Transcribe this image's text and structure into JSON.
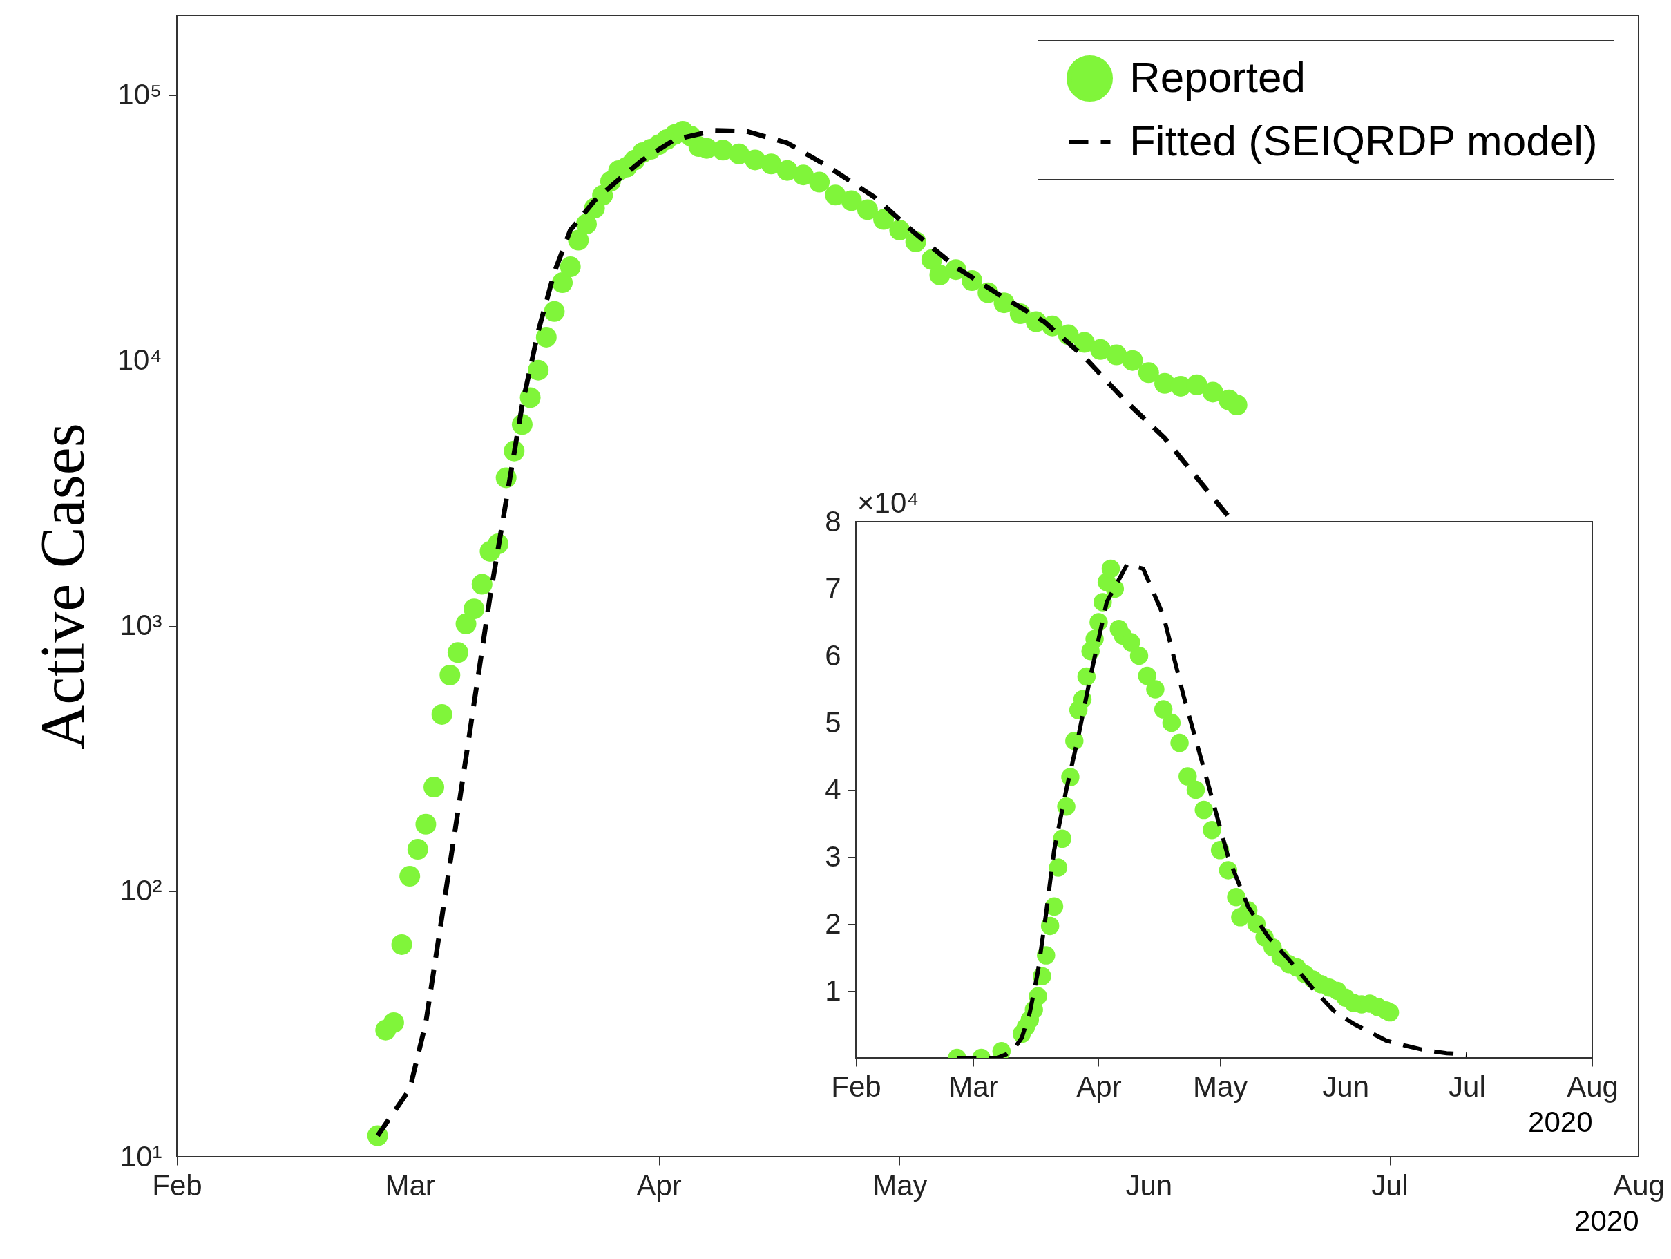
{
  "chart_data": [
    {
      "type": "scatter",
      "ylabel": "Active Cases",
      "xlabel": "2020",
      "log": true,
      "legend": "top right",
      "xlim": [
        "2020-02-01",
        "2020-08-01"
      ],
      "xticks": [
        {
          "value": "2020-02-01",
          "label": "Feb"
        },
        {
          "value": "2020-03-01",
          "label": "Mar"
        },
        {
          "value": "2020-04-01",
          "label": "Apr"
        },
        {
          "value": "2020-05-01",
          "label": "May"
        },
        {
          "value": "2020-06-01",
          "label": "Jun"
        },
        {
          "value": "2020-07-01",
          "label": "Jul"
        },
        {
          "value": "2020-08-01",
          "label": "Aug"
        }
      ],
      "ylim": [
        10,
        200000
      ],
      "yticks": [
        {
          "value": 10,
          "label": "10¹"
        },
        {
          "value": 100,
          "label": "10²"
        },
        {
          "value": 1000,
          "label": "10³"
        },
        {
          "value": 10000,
          "label": "10⁴"
        },
        {
          "value": 100000,
          "label": "10⁵"
        }
      ],
      "series": [
        {
          "name": "Reported",
          "type": "scatter",
          "marker": "circle",
          "color": "#80f53a",
          "x": [
            "2020-02-26",
            "2020-02-27",
            "2020-02-28",
            "2020-02-29",
            "2020-03-01",
            "2020-03-02",
            "2020-03-03",
            "2020-03-04",
            "2020-03-05",
            "2020-03-06",
            "2020-03-07",
            "2020-03-08",
            "2020-03-09",
            "2020-03-10",
            "2020-03-11",
            "2020-03-12",
            "2020-03-13",
            "2020-03-14",
            "2020-03-15",
            "2020-03-16",
            "2020-03-17",
            "2020-03-18",
            "2020-03-19",
            "2020-03-20",
            "2020-03-21",
            "2020-03-22",
            "2020-03-23",
            "2020-03-24",
            "2020-03-25",
            "2020-03-26",
            "2020-03-27",
            "2020-03-28",
            "2020-03-29",
            "2020-03-30",
            "2020-03-31",
            "2020-04-01",
            "2020-04-02",
            "2020-04-03",
            "2020-04-04",
            "2020-04-05",
            "2020-04-06",
            "2020-04-07",
            "2020-04-09",
            "2020-04-11",
            "2020-04-13",
            "2020-04-15",
            "2020-04-17",
            "2020-04-19",
            "2020-04-21",
            "2020-04-23",
            "2020-04-25",
            "2020-04-27",
            "2020-04-29",
            "2020-05-01",
            "2020-05-03",
            "2020-05-05",
            "2020-05-06",
            "2020-05-08",
            "2020-05-10",
            "2020-05-12",
            "2020-05-14",
            "2020-05-16",
            "2020-05-18",
            "2020-05-20",
            "2020-05-22",
            "2020-05-24",
            "2020-05-26",
            "2020-05-28",
            "2020-05-30",
            "2020-06-01",
            "2020-06-03",
            "2020-06-05",
            "2020-06-07",
            "2020-06-09",
            "2020-06-11",
            "2020-06-12"
          ],
          "values": [
            12,
            30,
            32,
            63,
            114,
            144,
            179,
            247,
            464,
            653,
            794,
            1018,
            1159,
            1435,
            1909,
            2038,
            3614,
            4560,
            5740,
            7245,
            9200,
            12240,
            15300,
            19650,
            22550,
            28400,
            32670,
            37500,
            41900,
            47300,
            51900,
            53500,
            56900,
            60700,
            62500,
            65000,
            68000,
            71000,
            73000,
            70000,
            64000,
            63000,
            62000,
            60000,
            57000,
            55000,
            52000,
            50000,
            47000,
            42000,
            40000,
            37000,
            34000,
            31000,
            28000,
            24000,
            21000,
            22000,
            20000,
            18000,
            16500,
            15000,
            14000,
            13500,
            12500,
            11700,
            11000,
            10500,
            10000,
            9000,
            8200,
            8000,
            8100,
            7600,
            7100,
            6800
          ]
        },
        {
          "name": "Fitted (SEIQRDP model)",
          "type": "line",
          "line_style": "dashed",
          "color": "#000000",
          "x": [
            "2020-02-26",
            "2020-03-01",
            "2020-03-03",
            "2020-03-05",
            "2020-03-07",
            "2020-03-09",
            "2020-03-11",
            "2020-03-13",
            "2020-03-15",
            "2020-03-17",
            "2020-03-19",
            "2020-03-21",
            "2020-03-24",
            "2020-03-27",
            "2020-03-30",
            "2020-04-03",
            "2020-04-08",
            "2020-04-12",
            "2020-04-17",
            "2020-04-22",
            "2020-04-28",
            "2020-05-03",
            "2020-05-08",
            "2020-05-13",
            "2020-05-19",
            "2020-05-24",
            "2020-05-29",
            "2020-06-03",
            "2020-06-11"
          ],
          "values": [
            12,
            18,
            32,
            80,
            200,
            510,
            1290,
            2960,
            6800,
            12900,
            21500,
            31000,
            40000,
            48000,
            57000,
            68000,
            73600,
            73000,
            66000,
            54000,
            41000,
            30000,
            22500,
            18000,
            14000,
            10300,
            7100,
            5100,
            2570
          ]
        }
      ]
    },
    {
      "type": "scatter",
      "xlabel": "2020",
      "annotations": [
        "×10⁴"
      ],
      "xlim": [
        "2020-02-01",
        "2020-08-01"
      ],
      "xticks": [
        {
          "value": "2020-02-01",
          "label": "Feb"
        },
        {
          "value": "2020-03-01",
          "label": "Mar"
        },
        {
          "value": "2020-04-01",
          "label": "Apr"
        },
        {
          "value": "2020-05-01",
          "label": "May"
        },
        {
          "value": "2020-06-01",
          "label": "Jun"
        },
        {
          "value": "2020-07-01",
          "label": "Jul"
        },
        {
          "value": "2020-08-01",
          "label": "Aug"
        }
      ],
      "ylim": [
        0,
        8
      ],
      "yticks": [
        1,
        2,
        3,
        4,
        5,
        6,
        7,
        8
      ],
      "series": [
        {
          "type": "scatter",
          "marker": "circle",
          "color": "#80f53a",
          "x": [
            "2020-02-26",
            "2020-03-03",
            "2020-03-08",
            "2020-03-13",
            "2020-03-14",
            "2020-03-15",
            "2020-03-16",
            "2020-03-17",
            "2020-03-18",
            "2020-03-19",
            "2020-03-20",
            "2020-03-21",
            "2020-03-22",
            "2020-03-23",
            "2020-03-24",
            "2020-03-25",
            "2020-03-26",
            "2020-03-27",
            "2020-03-28",
            "2020-03-29",
            "2020-03-30",
            "2020-03-31",
            "2020-04-01",
            "2020-04-02",
            "2020-04-03",
            "2020-04-04",
            "2020-04-05",
            "2020-04-06",
            "2020-04-07",
            "2020-04-09",
            "2020-04-11",
            "2020-04-13",
            "2020-04-15",
            "2020-04-17",
            "2020-04-19",
            "2020-04-21",
            "2020-04-23",
            "2020-04-25",
            "2020-04-27",
            "2020-04-29",
            "2020-05-01",
            "2020-05-03",
            "2020-05-05",
            "2020-05-06",
            "2020-05-08",
            "2020-05-10",
            "2020-05-12",
            "2020-05-14",
            "2020-05-16",
            "2020-05-18",
            "2020-05-20",
            "2020-05-22",
            "2020-05-24",
            "2020-05-26",
            "2020-05-28",
            "2020-05-30",
            "2020-06-01",
            "2020-06-03",
            "2020-06-05",
            "2020-06-07",
            "2020-06-09",
            "2020-06-11",
            "2020-06-12"
          ],
          "values": [
            0,
            0,
            0.1,
            0.36,
            0.46,
            0.57,
            0.72,
            0.92,
            1.22,
            1.53,
            1.97,
            2.26,
            2.84,
            3.27,
            3.75,
            4.19,
            4.73,
            5.19,
            5.35,
            5.69,
            6.07,
            6.25,
            6.5,
            6.8,
            7.1,
            7.3,
            7.0,
            6.4,
            6.3,
            6.2,
            6.0,
            5.7,
            5.5,
            5.2,
            5.0,
            4.7,
            4.2,
            4.0,
            3.7,
            3.4,
            3.1,
            2.8,
            2.4,
            2.1,
            2.2,
            2.0,
            1.8,
            1.65,
            1.5,
            1.4,
            1.35,
            1.25,
            1.17,
            1.1,
            1.05,
            1.0,
            0.9,
            0.82,
            0.8,
            0.81,
            0.76,
            0.71,
            0.68
          ]
        },
        {
          "type": "line",
          "line_style": "dashed",
          "color": "#000000",
          "x": [
            "2020-02-26",
            "2020-03-01",
            "2020-03-03",
            "2020-03-05",
            "2020-03-07",
            "2020-03-09",
            "2020-03-11",
            "2020-03-13",
            "2020-03-15",
            "2020-03-17",
            "2020-03-19",
            "2020-03-21",
            "2020-03-24",
            "2020-03-27",
            "2020-03-30",
            "2020-04-03",
            "2020-04-08",
            "2020-04-12",
            "2020-04-17",
            "2020-04-22",
            "2020-04-28",
            "2020-05-03",
            "2020-05-08",
            "2020-05-13",
            "2020-05-19",
            "2020-05-24",
            "2020-05-29",
            "2020-06-03",
            "2020-06-11",
            "2020-06-16",
            "2020-06-21",
            "2020-06-26",
            "2020-07-01"
          ],
          "values": [
            0,
            0,
            0,
            0,
            0,
            0.05,
            0.13,
            0.3,
            0.68,
            1.29,
            2.15,
            3.1,
            4.0,
            4.8,
            5.7,
            6.8,
            7.36,
            7.3,
            6.6,
            5.4,
            4.1,
            3.0,
            2.25,
            1.8,
            1.4,
            1.03,
            0.71,
            0.51,
            0.26,
            0.18,
            0.11,
            0.07,
            0.05
          ]
        }
      ]
    }
  ]
}
